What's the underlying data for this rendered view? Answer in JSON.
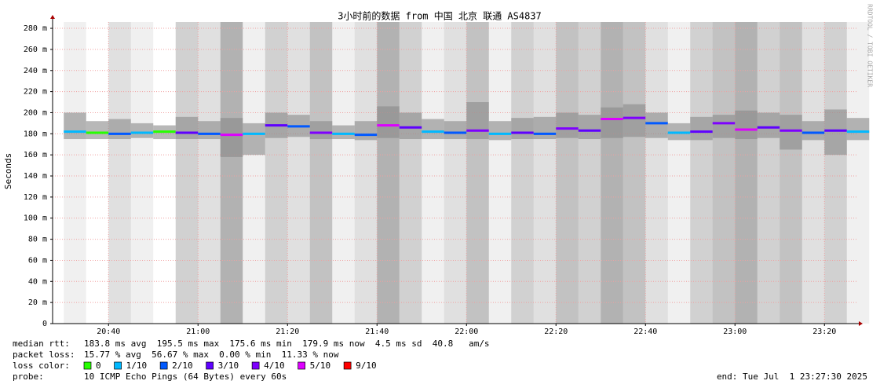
{
  "chart_data": {
    "type": "smokeping",
    "title": "3小时前的数据 from 中国 北京 联通 AS4837",
    "y_label": "Seconds",
    "side_label": "RRDTOOL / TOBI OETIKER",
    "x": [
      1230,
      1235,
      1240,
      1245,
      1250,
      1255,
      1260,
      1265,
      1270,
      1275,
      1280,
      1285,
      1290,
      1295,
      1300,
      1305,
      1310,
      1315,
      1320,
      1325,
      1330,
      1335,
      1340,
      1345,
      1350,
      1355,
      1360,
      1365,
      1370,
      1375,
      1380,
      1385,
      1390,
      1395,
      1400,
      1405
    ],
    "median": [
      182,
      181,
      180,
      181,
      182,
      181,
      180,
      179,
      180,
      188,
      187,
      181,
      180,
      179,
      188,
      186,
      182,
      181,
      183,
      180,
      181,
      180,
      185,
      183,
      194,
      195,
      190,
      181,
      182,
      190,
      184,
      186,
      183,
      181,
      183,
      182
    ],
    "min": [
      175,
      175,
      175,
      176,
      175,
      175,
      175,
      158,
      160,
      176,
      177,
      175,
      175,
      174,
      176,
      175,
      175,
      175,
      175,
      174,
      175,
      175,
      176,
      175,
      176,
      177,
      176,
      174,
      174,
      176,
      175,
      176,
      165,
      174,
      160,
      174
    ],
    "max": [
      200,
      192,
      194,
      190,
      188,
      196,
      192,
      195,
      190,
      200,
      198,
      192,
      188,
      192,
      206,
      200,
      194,
      192,
      210,
      192,
      195,
      196,
      200,
      198,
      205,
      208,
      200,
      190,
      196,
      198,
      202,
      200,
      198,
      192,
      203,
      195
    ],
    "loss": [
      1,
      0,
      2,
      1,
      0,
      3,
      2,
      5,
      1,
      3,
      2,
      4,
      1,
      2,
      5,
      3,
      1,
      2,
      4,
      1,
      3,
      2,
      4,
      3,
      5,
      4,
      2,
      1,
      3,
      4,
      5,
      3,
      4,
      2,
      3,
      1
    ],
    "loss_colors": [
      {
        "value": 0,
        "label": "0",
        "color": "#26ff00"
      },
      {
        "value": 1,
        "label": "1/10",
        "color": "#00b8ff"
      },
      {
        "value": 2,
        "label": "2/10",
        "color": "#0059ff"
      },
      {
        "value": 3,
        "label": "3/10",
        "color": "#5e00ff"
      },
      {
        "value": 4,
        "label": "4/10",
        "color": "#7e00ff"
      },
      {
        "value": 5,
        "label": "5/10",
        "color": "#dd00ff"
      },
      {
        "value": 9,
        "label": "9/10",
        "color": "#ff0000"
      }
    ],
    "xlim": [
      1227.5,
      1407.5
    ],
    "xticks": [
      {
        "value": 1240,
        "label": "20:40"
      },
      {
        "value": 1260,
        "label": "21:00"
      },
      {
        "value": 1280,
        "label": "21:20"
      },
      {
        "value": 1300,
        "label": "21:40"
      },
      {
        "value": 1320,
        "label": "22:00"
      },
      {
        "value": 1340,
        "label": "22:20"
      },
      {
        "value": 1360,
        "label": "22:40"
      },
      {
        "value": 1380,
        "label": "23:00"
      },
      {
        "value": 1400,
        "label": "23:20"
      }
    ],
    "ylim": [
      0,
      286
    ],
    "yticks": [
      0,
      {
        "value": 20,
        "label": "20 m"
      },
      {
        "value": 40,
        "label": "40 m"
      },
      {
        "value": 60,
        "label": "60 m"
      },
      {
        "value": 80,
        "label": "80 m"
      },
      {
        "value": 100,
        "label": "100 m"
      },
      {
        "value": 120,
        "label": "120 m"
      },
      {
        "value": 140,
        "label": "140 m"
      },
      {
        "value": 160,
        "label": "160 m"
      },
      {
        "value": 180,
        "label": "180 m"
      },
      {
        "value": 200,
        "label": "200 m"
      },
      {
        "value": 220,
        "label": "220 m"
      },
      {
        "value": 240,
        "label": "240 m"
      },
      {
        "value": 260,
        "label": "260 m"
      },
      {
        "value": 280,
        "label": "280 m"
      }
    ],
    "grid": true,
    "stats": [
      {
        "label": "median rtt:",
        "text": "183.8 ms avg  195.5 ms max  175.6 ms min  179.9 ms now  4.5 ms sd  40.8   am/s"
      },
      {
        "label": "packet loss:",
        "text": "15.77 % avg  56.67 % max  0.00 % min  11.33 % now"
      }
    ],
    "loss_color_label": "loss color:",
    "probe_label": "probe:",
    "probe": "10 ICMP Echo Pings (64 Bytes) every 60s",
    "end": "end: Tue Jul  1 23:27:30 2025"
  }
}
